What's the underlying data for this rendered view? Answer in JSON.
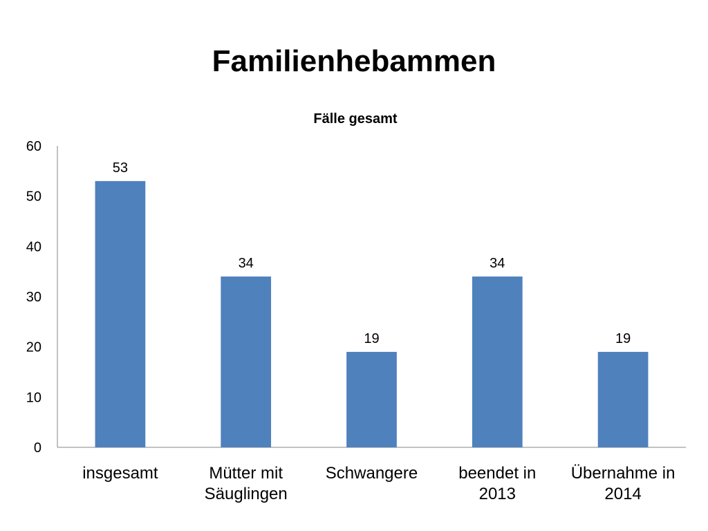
{
  "slide": {
    "title": "Familienhebammen"
  },
  "colors": {
    "bar": "#4f81bd",
    "axis": "#868686",
    "text": "#000000",
    "background": "#ffffff"
  },
  "chart_data": {
    "type": "bar",
    "title": "Fälle gesamt",
    "xlabel": "",
    "ylabel": "",
    "categories": [
      [
        "insgesamt"
      ],
      [
        "Mütter mit",
        "Säuglingen"
      ],
      [
        "Schwangere"
      ],
      [
        "beendet in",
        "2013"
      ],
      [
        "Übernahme in",
        "2014"
      ]
    ],
    "values": [
      53,
      34,
      19,
      34,
      19
    ],
    "data_labels": [
      "53",
      "34",
      "19",
      "34",
      "19"
    ],
    "ylim": [
      0,
      60
    ],
    "yticks": [
      "0",
      "10",
      "20",
      "30",
      "40",
      "50",
      "60"
    ],
    "grid": false,
    "legend": "none"
  }
}
